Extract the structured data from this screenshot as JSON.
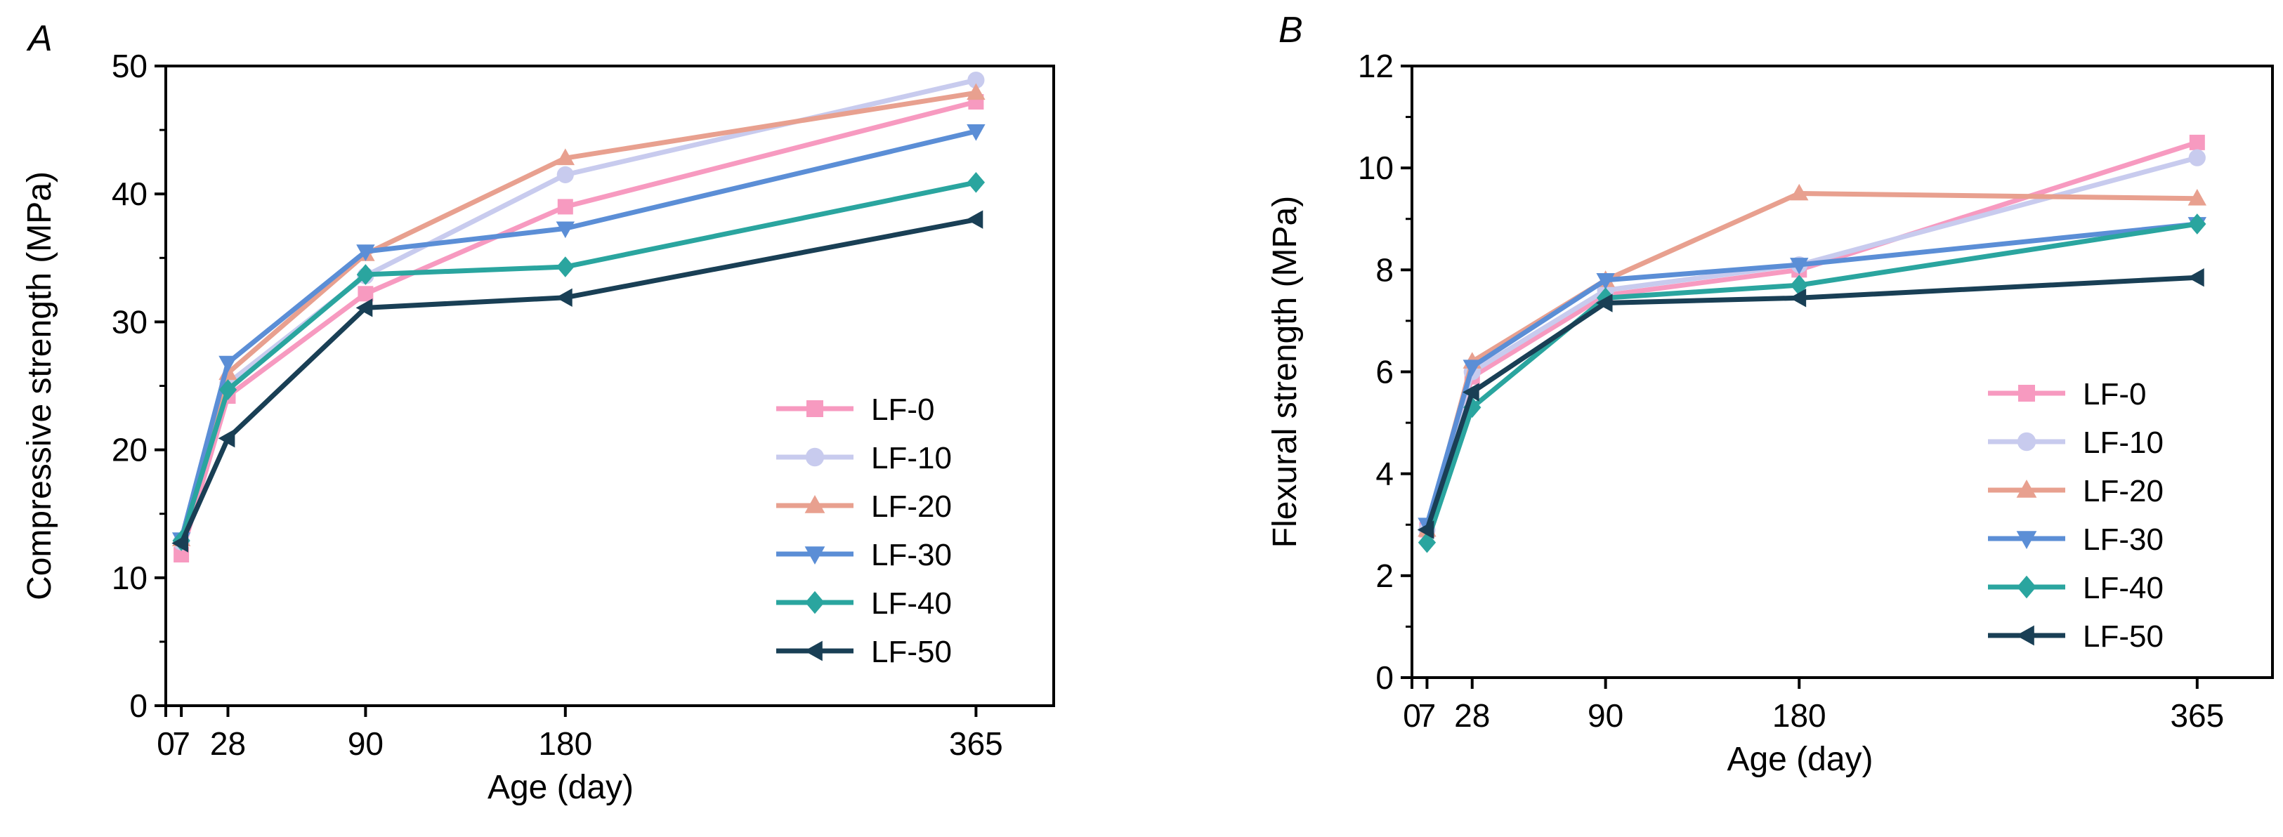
{
  "chart_data": [
    {
      "type": "line",
      "panel_label": "A",
      "xlabel": "Age (day)",
      "ylabel": "Compressive strength (MPa)",
      "x": [
        7,
        28,
        90,
        180,
        365
      ],
      "x_tick_labels": [
        "0",
        "7",
        "28",
        "90",
        "180",
        "365"
      ],
      "x_ticks": [
        0,
        7,
        28,
        90,
        180,
        365
      ],
      "xlim": [
        0,
        400
      ],
      "ylim": [
        0,
        50
      ],
      "y_ticks": [
        0,
        10,
        20,
        30,
        40,
        50
      ],
      "y_tick_labels": [
        "0",
        "10",
        "20",
        "30",
        "40",
        "50"
      ],
      "grid": false,
      "legend_position": "bottom-right",
      "series": [
        {
          "name": "LF-0",
          "color": "#f79ac0",
          "marker": "square",
          "values": [
            11.8,
            24.2,
            32.2,
            39.0,
            47.2
          ]
        },
        {
          "name": "LF-10",
          "color": "#c8cbee",
          "marker": "circle",
          "values": [
            12.8,
            25.2,
            33.6,
            41.5,
            48.9
          ]
        },
        {
          "name": "LF-20",
          "color": "#e8a08f",
          "marker": "triangle-up",
          "values": [
            13.0,
            26.0,
            35.3,
            42.8,
            47.9
          ]
        },
        {
          "name": "LF-30",
          "color": "#5b8ed6",
          "marker": "triangle-down",
          "values": [
            13.0,
            26.8,
            35.5,
            37.3,
            44.9
          ]
        },
        {
          "name": "LF-40",
          "color": "#2aa59f",
          "marker": "diamond",
          "values": [
            12.9,
            24.7,
            33.7,
            34.3,
            40.9
          ]
        },
        {
          "name": "LF-50",
          "color": "#193f55",
          "marker": "triangle-left",
          "values": [
            12.7,
            20.9,
            31.1,
            31.9,
            38.0
          ]
        }
      ]
    },
    {
      "type": "line",
      "panel_label": "B",
      "xlabel": "Age (day)",
      "ylabel": "Flexural strength (MPa)",
      "x": [
        7,
        28,
        90,
        180,
        365
      ],
      "x_tick_labels": [
        "0",
        "7",
        "28",
        "90",
        "180",
        "365"
      ],
      "x_ticks": [
        0,
        7,
        28,
        90,
        180,
        365
      ],
      "xlim": [
        0,
        400
      ],
      "ylim": [
        0,
        12
      ],
      "y_ticks": [
        0,
        2,
        4,
        6,
        8,
        10,
        12
      ],
      "y_tick_labels": [
        "0",
        "2",
        "4",
        "6",
        "8",
        "10",
        "12"
      ],
      "grid": false,
      "legend_position": "bottom-right",
      "series": [
        {
          "name": "LF-0",
          "color": "#f79ac0",
          "marker": "square",
          "values": [
            2.9,
            5.9,
            7.5,
            8.0,
            10.5
          ]
        },
        {
          "name": "LF-10",
          "color": "#c8cbee",
          "marker": "circle",
          "values": [
            2.9,
            6.0,
            7.6,
            8.1,
            10.2
          ]
        },
        {
          "name": "LF-20",
          "color": "#e8a08f",
          "marker": "triangle-up",
          "values": [
            2.9,
            6.2,
            7.8,
            9.5,
            9.4
          ]
        },
        {
          "name": "LF-30",
          "color": "#5b8ed6",
          "marker": "triangle-down",
          "values": [
            3.0,
            6.1,
            7.8,
            8.1,
            8.9
          ]
        },
        {
          "name": "LF-40",
          "color": "#2aa59f",
          "marker": "diamond",
          "values": [
            2.65,
            5.3,
            7.45,
            7.7,
            8.9
          ]
        },
        {
          "name": "LF-50",
          "color": "#193f55",
          "marker": "triangle-left",
          "values": [
            2.9,
            5.6,
            7.35,
            7.45,
            7.85
          ]
        }
      ]
    }
  ]
}
